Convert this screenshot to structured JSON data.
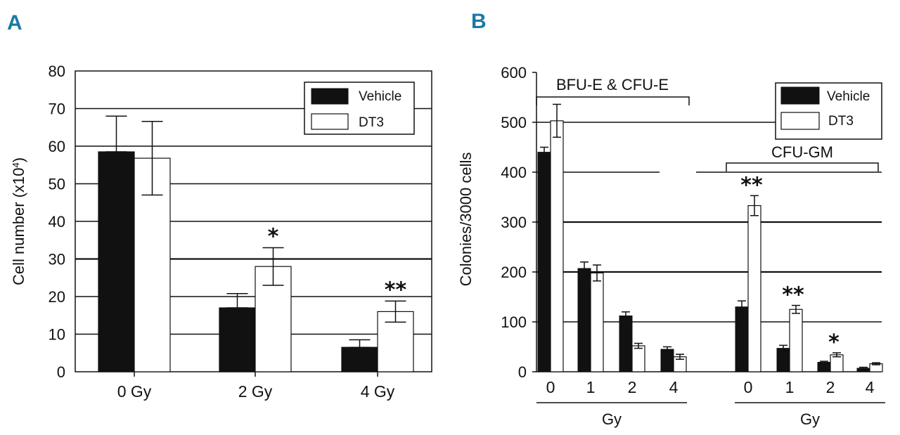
{
  "chart_data": [
    {
      "panel": "A",
      "type": "bar",
      "title": "",
      "xlabel": "",
      "ylabel": "Cell number (x10",
      "ylabel_sup": "4",
      "ylabel_close": ")",
      "ylim": [
        0,
        80
      ],
      "yticks": [
        "0",
        "10",
        "20",
        "30",
        "40",
        "50",
        "60",
        "70",
        "80"
      ],
      "categories": [
        "0 Gy",
        "2 Gy",
        "4 Gy"
      ],
      "series": [
        {
          "name": "Vehicle",
          "color": "#111111",
          "values": [
            58.5,
            17,
            6.5
          ],
          "errors": [
            9.5,
            3.8,
            2
          ]
        },
        {
          "name": "DT3",
          "color": "#ffffff",
          "values": [
            56.8,
            28,
            16
          ],
          "errors": [
            9.8,
            5,
            2.8
          ]
        }
      ],
      "significance": [
        "",
        "*",
        "**"
      ],
      "legend": {
        "position": "top-right",
        "entries": [
          "Vehicle",
          "DT3"
        ]
      },
      "grid": true
    },
    {
      "panel": "B",
      "type": "bar",
      "title": "",
      "xlabel": "Gy",
      "ylabel": "Colonies/3000 cells",
      "ylim": [
        0,
        600
      ],
      "yticks": [
        "0",
        "100",
        "200",
        "300",
        "400",
        "500",
        "600"
      ],
      "groups": [
        {
          "name": "BFU-E & CFU-E",
          "axis_label": "Gy",
          "categories": [
            "0",
            "1",
            "2",
            "4"
          ],
          "vehicle": [
            440,
            207,
            112,
            45
          ],
          "vehicle_err": [
            10,
            13,
            8,
            5
          ],
          "dt3": [
            503,
            198,
            52,
            30
          ],
          "dt3_err": [
            33,
            16,
            5,
            5
          ],
          "significance": [
            "",
            "",
            "",
            ""
          ]
        },
        {
          "name": "CFU-GM",
          "axis_label": "Gy",
          "categories": [
            "0",
            "1",
            "2",
            "4"
          ],
          "vehicle": [
            130,
            47,
            19,
            7
          ],
          "vehicle_err": [
            12,
            6,
            2,
            2
          ],
          "dt3": [
            333,
            125,
            34,
            16
          ],
          "dt3_err": [
            20,
            8,
            4,
            2
          ],
          "significance": [
            "**",
            "**",
            "*",
            ""
          ]
        }
      ],
      "legend": {
        "position": "top-right",
        "entries": [
          "Vehicle",
          "DT3"
        ]
      },
      "grid": true
    }
  ]
}
